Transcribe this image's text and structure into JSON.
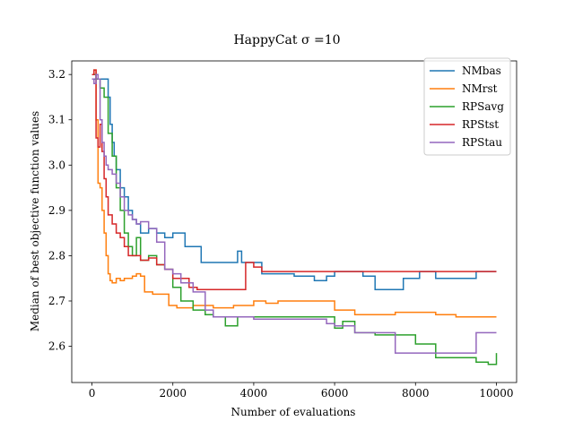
{
  "chart_data": {
    "type": "line",
    "title": "HappyCat σ =10",
    "xlabel": "Number of evaluations",
    "ylabel": "Median of best objective function values",
    "xlim": [
      -500,
      10500
    ],
    "ylim": [
      2.52,
      3.23
    ],
    "xticks": [
      0,
      2000,
      4000,
      6000,
      8000,
      10000
    ],
    "xtick_labels": [
      "0",
      "2000",
      "4000",
      "6000",
      "8000",
      "10000"
    ],
    "yticks": [
      2.6,
      2.7,
      2.8,
      2.9,
      3.0,
      3.1,
      3.2
    ],
    "ytick_labels": [
      "2.6",
      "2.7",
      "2.8",
      "2.9",
      "3.0",
      "3.1",
      "3.2"
    ],
    "legend_position": "top-right",
    "grid": false,
    "series": [
      {
        "name": "NMbas",
        "color": "#1f77b4",
        "x": [
          0,
          100,
          200,
          400,
          450,
          500,
          550,
          600,
          700,
          800,
          900,
          1000,
          1100,
          1200,
          1400,
          1600,
          1800,
          2000,
          2300,
          2700,
          3000,
          3500,
          3600,
          3700,
          3900,
          4200,
          4500,
          5000,
          5500,
          5800,
          6000,
          6400,
          6700,
          7000,
          7300,
          7700,
          8000,
          8100,
          8500,
          9000,
          9500,
          10000
        ],
        "y": [
          3.19,
          3.19,
          3.19,
          3.15,
          3.09,
          3.05,
          3.02,
          2.99,
          2.95,
          2.93,
          2.9,
          2.88,
          2.87,
          2.85,
          2.86,
          2.85,
          2.84,
          2.85,
          2.82,
          2.785,
          2.785,
          2.785,
          2.81,
          2.785,
          2.785,
          2.76,
          2.76,
          2.755,
          2.745,
          2.755,
          2.765,
          2.765,
          2.755,
          2.725,
          2.725,
          2.75,
          2.75,
          2.765,
          2.75,
          2.75,
          2.765,
          2.765
        ]
      },
      {
        "name": "NMrst",
        "color": "#ff7f0e",
        "x": [
          0,
          50,
          100,
          150,
          200,
          250,
          300,
          350,
          400,
          450,
          500,
          600,
          700,
          800,
          900,
          1000,
          1100,
          1200,
          1300,
          1500,
          1700,
          1900,
          2100,
          2500,
          3000,
          3500,
          4000,
          4300,
          4600,
          5000,
          5500,
          6000,
          6500,
          7000,
          7500,
          8000,
          8500,
          9000,
          9500,
          10000
        ],
        "y": [
          3.2,
          3.21,
          3.1,
          2.96,
          2.95,
          2.9,
          2.85,
          2.8,
          2.76,
          2.745,
          2.74,
          2.75,
          2.745,
          2.75,
          2.75,
          2.755,
          2.76,
          2.755,
          2.72,
          2.715,
          2.715,
          2.69,
          2.685,
          2.69,
          2.685,
          2.69,
          2.7,
          2.695,
          2.7,
          2.7,
          2.7,
          2.68,
          2.67,
          2.67,
          2.675,
          2.675,
          2.67,
          2.665,
          2.665,
          2.665
        ]
      },
      {
        "name": "RPSavg",
        "color": "#2ca02c",
        "x": [
          0,
          100,
          200,
          300,
          400,
          500,
          600,
          700,
          800,
          900,
          1000,
          1100,
          1200,
          1400,
          1600,
          1800,
          2000,
          2200,
          2500,
          2800,
          3000,
          3300,
          3600,
          4000,
          4500,
          5000,
          5500,
          6000,
          6200,
          6500,
          7000,
          7500,
          8000,
          8200,
          8500,
          9000,
          9500,
          9800,
          10000
        ],
        "y": [
          3.2,
          3.19,
          3.17,
          3.15,
          3.07,
          3.02,
          2.95,
          2.9,
          2.85,
          2.82,
          2.8,
          2.84,
          2.79,
          2.8,
          2.78,
          2.77,
          2.73,
          2.7,
          2.68,
          2.67,
          2.665,
          2.645,
          2.665,
          2.665,
          2.665,
          2.665,
          2.665,
          2.64,
          2.655,
          2.63,
          2.625,
          2.625,
          2.605,
          2.605,
          2.575,
          2.575,
          2.565,
          2.56,
          2.585
        ]
      },
      {
        "name": "RPStst",
        "color": "#d62728",
        "x": [
          0,
          50,
          100,
          150,
          200,
          250,
          300,
          350,
          400,
          500,
          600,
          700,
          800,
          900,
          1000,
          1200,
          1400,
          1600,
          1800,
          2000,
          2200,
          2400,
          2600,
          3000,
          3500,
          3800,
          4000,
          4200,
          4500,
          5000,
          5500,
          6000,
          6500,
          7000,
          7500,
          8000,
          8500,
          9000,
          9500,
          10000
        ],
        "y": [
          3.2,
          3.21,
          3.06,
          3.04,
          3.09,
          3.03,
          2.97,
          2.93,
          2.89,
          2.87,
          2.85,
          2.84,
          2.82,
          2.8,
          2.8,
          2.79,
          2.795,
          2.78,
          2.77,
          2.75,
          2.75,
          2.73,
          2.725,
          2.725,
          2.725,
          2.785,
          2.775,
          2.765,
          2.765,
          2.765,
          2.765,
          2.765,
          2.765,
          2.765,
          2.765,
          2.765,
          2.765,
          2.765,
          2.765,
          2.765
        ]
      },
      {
        "name": "RPStau",
        "color": "#9467bd",
        "x": [
          0,
          50,
          100,
          150,
          200,
          250,
          300,
          350,
          400,
          500,
          600,
          700,
          800,
          900,
          1000,
          1100,
          1200,
          1400,
          1600,
          1800,
          2000,
          2200,
          2500,
          2800,
          3000,
          3500,
          4000,
          4500,
          5000,
          5500,
          5800,
          6000,
          6300,
          6500,
          7000,
          7300,
          7500,
          8000,
          8500,
          9000,
          9300,
          9500,
          10000
        ],
        "y": [
          3.19,
          3.18,
          3.2,
          3.19,
          3.1,
          3.05,
          3.02,
          3.0,
          2.99,
          2.98,
          2.96,
          2.93,
          2.9,
          2.89,
          2.88,
          2.87,
          2.875,
          2.86,
          2.83,
          2.77,
          2.76,
          2.74,
          2.72,
          2.68,
          2.665,
          2.665,
          2.66,
          2.66,
          2.66,
          2.66,
          2.65,
          2.645,
          2.645,
          2.63,
          2.63,
          2.63,
          2.585,
          2.585,
          2.585,
          2.585,
          2.585,
          2.63,
          2.63
        ]
      }
    ]
  }
}
